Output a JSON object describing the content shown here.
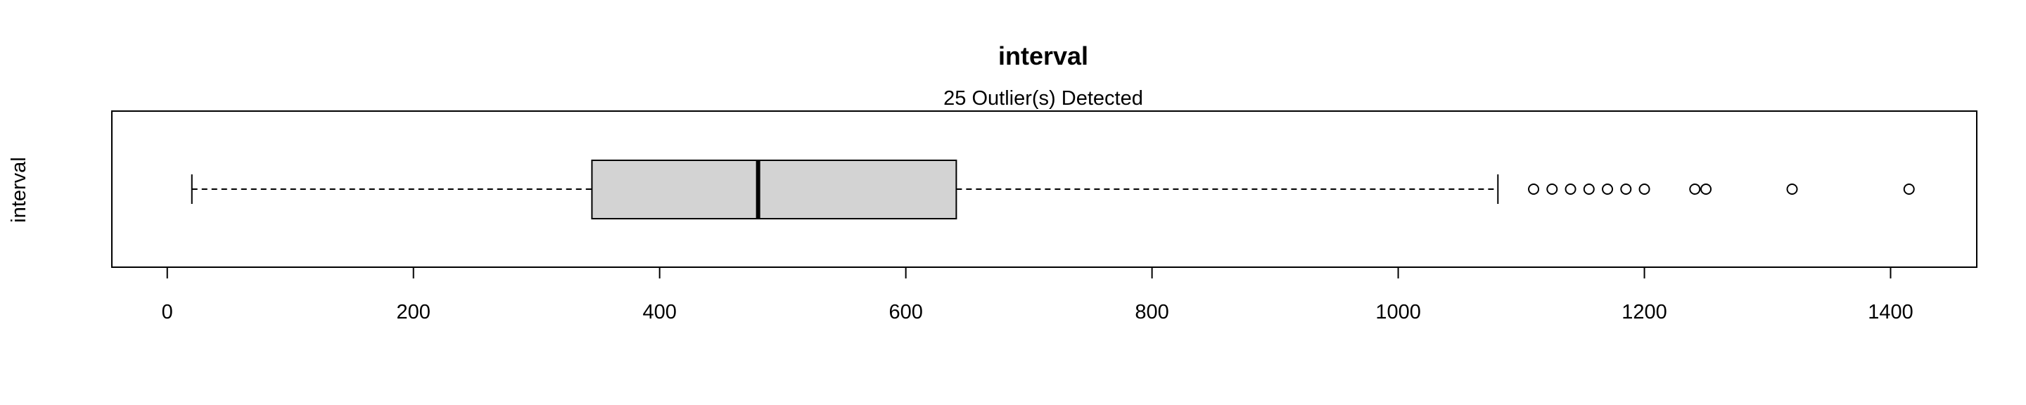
{
  "chart_data": {
    "type": "boxplot",
    "orientation": "horizontal",
    "title": "interval",
    "subtitle": "25 Outlier(s) Detected",
    "ylabel": "interval",
    "xlim": [
      -45,
      1470
    ],
    "x_ticks": [
      0,
      200,
      400,
      600,
      800,
      1000,
      1200,
      1400
    ],
    "box": {
      "whisker_low": 20,
      "q1": 345,
      "median": 480,
      "q3": 641,
      "whisker_high": 1081
    },
    "outliers": [
      1110,
      1125,
      1140,
      1155,
      1170,
      1185,
      1200,
      1241,
      1250,
      1320,
      1415
    ],
    "box_fill": "#d3d3d3",
    "grid": false
  }
}
